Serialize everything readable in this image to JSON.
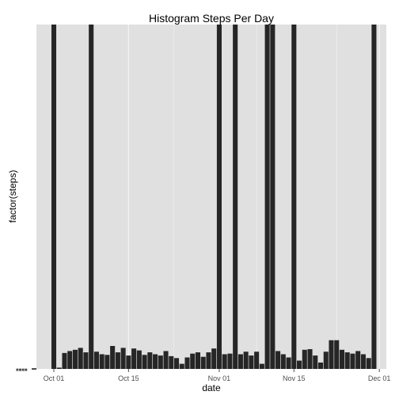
{
  "chart_data": {
    "type": "bar",
    "title": "Histogram Steps Per Day",
    "xlabel": "date",
    "ylabel": "factor(steps)",
    "x_tick_labels": [
      "Oct 01",
      "Oct 15",
      "Nov 01",
      "Nov 15",
      "Dec 01"
    ],
    "x_tick_days": [
      0,
      14,
      31,
      45,
      61
    ],
    "y_tick_label_note": "dense overlapping labels (unreadable)",
    "ylim": [
      0,
      54
    ],
    "grid": true,
    "background": "#e0e0e0",
    "bar_color": "#262626",
    "series": [
      {
        "start_date": "2012-10-01",
        "values": [
          54,
          0.2,
          2.5,
          2.8,
          3.0,
          3.3,
          2.6,
          54,
          2.7,
          2.3,
          2.2,
          3.6,
          2.6,
          3.3,
          2.1,
          3.2,
          2.9,
          2.2,
          2.6,
          2.3,
          2.1,
          2.8,
          2.0,
          1.7,
          0.8,
          1.8,
          2.4,
          2.6,
          1.9,
          2.6,
          3.2,
          54,
          2.3,
          2.4,
          54,
          2.3,
          2.7,
          2.1,
          2.7,
          0.8,
          54,
          54,
          2.8,
          2.3,
          1.8,
          54,
          1.3,
          3.0,
          3.1,
          2.1,
          1.0,
          2.7,
          4.5,
          4.5,
          3.0,
          2.6,
          2.4,
          2.8,
          2.3,
          1.7,
          54
        ]
      }
    ]
  }
}
